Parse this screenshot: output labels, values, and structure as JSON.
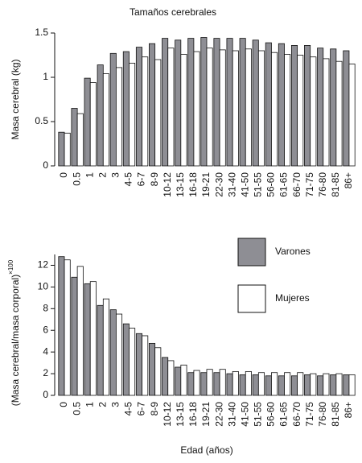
{
  "chart_data": [
    {
      "type": "bar",
      "title": "Tamaños cerebrales",
      "y_label": "Masa cerebral (kg)",
      "categories": [
        "0",
        "0.5",
        "1",
        "2",
        "3",
        "4-5",
        "6-7",
        "8-9",
        "10-12",
        "13-15",
        "16-18",
        "19-21",
        "22-30",
        "31-40",
        "41-50",
        "51-55",
        "56-60",
        "61-65",
        "66-70",
        "71-75",
        "76-80",
        "81-85",
        "86+"
      ],
      "series": [
        {
          "color": "#8e8e94",
          "values": [
            0.38,
            0.65,
            0.99,
            1.14,
            1.27,
            1.29,
            1.34,
            1.38,
            1.44,
            1.42,
            1.44,
            1.45,
            1.44,
            1.44,
            1.44,
            1.42,
            1.39,
            1.38,
            1.36,
            1.36,
            1.33,
            1.32,
            1.3
          ]
        },
        {
          "color": "#ffffff",
          "values": [
            0.37,
            0.59,
            0.94,
            1.04,
            1.11,
            1.16,
            1.23,
            1.2,
            1.33,
            1.26,
            1.29,
            1.33,
            1.31,
            1.3,
            1.32,
            1.3,
            1.28,
            1.26,
            1.25,
            1.23,
            1.21,
            1.18,
            1.15
          ]
        }
      ],
      "ylim": [
        0,
        1.5
      ],
      "yticks": [
        0,
        0.5,
        1,
        1.5
      ]
    },
    {
      "type": "bar",
      "y_label": "(Masa cerebral/masa corporal)",
      "y_label_superscript": "×100",
      "x_label": "Edad (años)",
      "categories": [
        "0",
        "0.5",
        "1",
        "2",
        "3",
        "4-5",
        "6-7",
        "8-9",
        "10-12",
        "13-15",
        "16-18",
        "19-21",
        "22-30",
        "31-40",
        "41-50",
        "51-55",
        "56-60",
        "61-65",
        "66-70",
        "71-75",
        "76-80",
        "81-85",
        "86+"
      ],
      "series": [
        {
          "name": "Varones",
          "color": "#8e8e94",
          "values": [
            12.8,
            10.9,
            10.3,
            8.3,
            7.9,
            6.6,
            5.7,
            4.8,
            3.5,
            2.6,
            2.1,
            2.1,
            2.1,
            2.0,
            1.9,
            1.9,
            1.8,
            1.8,
            1.8,
            1.9,
            1.8,
            1.9,
            1.9
          ]
        },
        {
          "name": "Mujeres",
          "color": "#ffffff",
          "values": [
            12.5,
            11.9,
            10.5,
            8.9,
            7.5,
            6.2,
            5.5,
            4.4,
            3.2,
            2.8,
            2.3,
            2.4,
            2.4,
            2.2,
            2.2,
            2.1,
            2.1,
            2.1,
            2.1,
            2.0,
            2.0,
            2.0,
            1.9
          ]
        }
      ],
      "ylim": [
        0,
        13
      ],
      "yticks": [
        0,
        2,
        4,
        6,
        8,
        10,
        12
      ],
      "legend": "upper right"
    }
  ]
}
